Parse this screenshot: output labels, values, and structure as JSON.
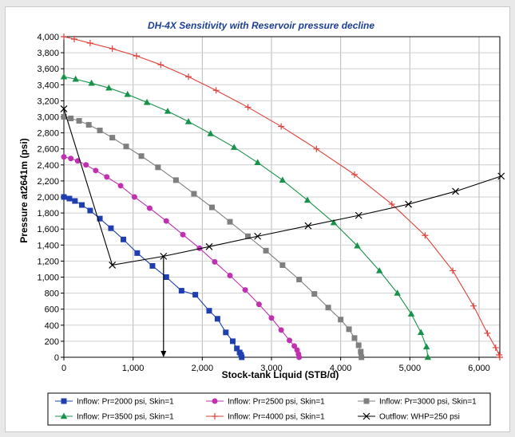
{
  "chart_data": {
    "type": "line",
    "title": "DH-4X Sensitivity with Reservoir pressure decline",
    "xlabel": "Stock-tank Liquid (STB/d)",
    "ylabel": "Pressure at2641m (psi)",
    "xlim": [
      0,
      6300
    ],
    "ylim": [
      0,
      4000
    ],
    "xticks": [
      "0",
      "1,000",
      "2,000",
      "3,000",
      "4,000",
      "5,000",
      "6,000"
    ],
    "xtick_values": [
      0,
      1000,
      2000,
      3000,
      4000,
      5000,
      6000
    ],
    "yticks": [
      "0",
      "200",
      "400",
      "600",
      "800",
      "1,000",
      "1,200",
      "1,400",
      "1,600",
      "1,800",
      "2,000",
      "2,200",
      "2,400",
      "2,600",
      "2,800",
      "3,000",
      "3,200",
      "3,400",
      "3,600",
      "3,800",
      "4,000"
    ],
    "ytick_values": [
      0,
      200,
      400,
      600,
      800,
      1000,
      1200,
      1400,
      1600,
      1800,
      2000,
      2200,
      2400,
      2600,
      2800,
      3000,
      3200,
      3400,
      3600,
      3800,
      4000
    ],
    "grid": true,
    "legend_position": "bottom",
    "series": [
      {
        "name": "Inflow: Pr=2000 psi, Skin=1",
        "color": "#1f3fb0",
        "marker": "square",
        "x": [
          0,
          80,
          160,
          260,
          380,
          520,
          680,
          860,
          1060,
          1280,
          1480,
          1700,
          1900,
          2100,
          2220,
          2340,
          2440,
          2500,
          2540,
          2560,
          2570
        ],
        "y": [
          2000,
          1980,
          1950,
          1900,
          1830,
          1730,
          1610,
          1470,
          1300,
          1140,
          1000,
          830,
          780,
          580,
          480,
          310,
          200,
          110,
          60,
          30,
          0
        ]
      },
      {
        "name": "Inflow: Pr=2500 psi, Skin=1",
        "color": "#c030b0",
        "marker": "circle",
        "x": [
          0,
          100,
          200,
          320,
          460,
          620,
          820,
          1020,
          1240,
          1480,
          1720,
          1960,
          2180,
          2400,
          2620,
          2820,
          3000,
          3140,
          3260,
          3330,
          3370,
          3390,
          3400
        ],
        "y": [
          2500,
          2480,
          2450,
          2400,
          2330,
          2250,
          2140,
          2000,
          1860,
          1700,
          1530,
          1360,
          1190,
          1020,
          840,
          660,
          490,
          340,
          210,
          140,
          90,
          40,
          0
        ]
      },
      {
        "name": "Inflow: Pr=3000 psi, Skin=1",
        "color": "#7f7f7f",
        "marker": "square",
        "x": [
          0,
          100,
          220,
          360,
          520,
          700,
          900,
          1120,
          1360,
          1620,
          1880,
          2140,
          2400,
          2660,
          2920,
          3160,
          3400,
          3620,
          3820,
          4000,
          4120,
          4200,
          4260,
          4290,
          4300
        ],
        "y": [
          3000,
          2980,
          2950,
          2900,
          2830,
          2740,
          2630,
          2510,
          2370,
          2210,
          2040,
          1870,
          1690,
          1510,
          1330,
          1150,
          970,
          790,
          620,
          470,
          350,
          240,
          150,
          70,
          0
        ]
      },
      {
        "name": "Inflow: Pr=3500 psi, Skin=1",
        "color": "#17924a",
        "marker": "triangle",
        "x": [
          0,
          170,
          400,
          650,
          920,
          1200,
          1500,
          1800,
          2120,
          2460,
          2800,
          3160,
          3520,
          3900,
          4240,
          4560,
          4820,
          5020,
          5160,
          5240,
          5260
        ],
        "y": [
          3500,
          3470,
          3420,
          3360,
          3280,
          3180,
          3070,
          2940,
          2790,
          2620,
          2430,
          2210,
          1960,
          1680,
          1390,
          1080,
          800,
          540,
          310,
          130,
          0
        ]
      },
      {
        "name": "Inflow: Pr=4000 psi, Skin=1",
        "color": "#e0403a",
        "marker": "plus",
        "x": [
          0,
          150,
          380,
          700,
          1050,
          1400,
          1800,
          2200,
          2660,
          3140,
          3650,
          4200,
          4740,
          5220,
          5620,
          5920,
          6120,
          6240,
          6290,
          6300
        ],
        "y": [
          4000,
          3970,
          3920,
          3850,
          3760,
          3650,
          3500,
          3330,
          3120,
          2880,
          2600,
          2280,
          1910,
          1520,
          1080,
          640,
          300,
          120,
          30,
          0
        ]
      },
      {
        "name": "Outflow: WHP=250 psi",
        "color": "#000000",
        "marker": "x",
        "x": [
          0,
          700,
          1440,
          2100,
          2800,
          3530,
          4260,
          4980,
          5660,
          6320
        ],
        "y": [
          3100,
          1150,
          1260,
          1380,
          1510,
          1640,
          1770,
          1910,
          2070,
          2260
        ]
      }
    ],
    "annotations": [
      {
        "type": "vertical-arrow",
        "x": 1440,
        "y_from": 1260,
        "y_to": 0
      }
    ]
  }
}
